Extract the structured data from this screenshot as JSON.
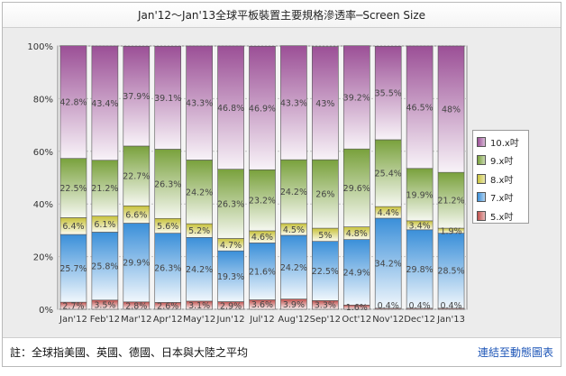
{
  "window": {
    "title": "Jan'12～Jan'13全球平板裝置主要規格滲透率─Screen Size"
  },
  "footer": {
    "note": "註：全球指美國、英國、德國、日本與大陸之平均",
    "link_label": "連結至動態圖表"
  },
  "chart_data": {
    "type": "bar",
    "stacked": true,
    "normalized": true,
    "title": "Jan'12～Jan'13全球平板裝置主要規格滲透率─Screen Size",
    "xlabel": "",
    "ylabel": "",
    "categories": [
      "Jan'12",
      "Feb'12",
      "Mar'12",
      "Apr'12",
      "May'12",
      "Jun'12",
      "Jul'12",
      "Aug'12",
      "Sep'12",
      "Oct'12",
      "Nov'12",
      "Dec'12",
      "Jan'13"
    ],
    "yticks": [
      "0%",
      "20%",
      "40%",
      "60%",
      "80%",
      "100%"
    ],
    "ylim": [
      0,
      100
    ],
    "grid": true,
    "legend_position": "right",
    "series": [
      {
        "name": "5.x吋",
        "color": "#c0504d",
        "values": [
          2.7,
          3.5,
          2.8,
          2.6,
          3.1,
          2.9,
          3.6,
          3.9,
          3.3,
          1.6,
          0.4,
          0.4,
          0.4
        ],
        "labels": [
          "2.7%",
          "3.5%",
          "2.8%",
          "2.6%",
          "3.1%",
          "2.9%",
          "3.6%",
          "3.9%",
          "3.3%",
          "1.6%",
          "0.4%",
          "0.4%",
          "0.4%"
        ]
      },
      {
        "name": "7.x吋",
        "color": "#3a8fd9",
        "values": [
          25.7,
          25.8,
          29.9,
          26.3,
          24.2,
          19.3,
          21.6,
          24.2,
          22.5,
          24.9,
          34.2,
          29.8,
          28.5
        ],
        "labels": [
          "25.7%",
          "25.8%",
          "29.9%",
          "26.3%",
          "24.2%",
          "19.3%",
          "21.6%",
          "24.2%",
          "22.5%",
          "24.9%",
          "34.2%",
          "29.8%",
          "28.5%"
        ]
      },
      {
        "name": "8.x吋",
        "color": "#c8c23a",
        "values": [
          6.4,
          6.1,
          6.6,
          5.6,
          5.2,
          4.7,
          4.6,
          4.5,
          5.0,
          4.8,
          4.4,
          3.4,
          1.9
        ],
        "labels": [
          "6.4%",
          "6.1%",
          "6.6%",
          "5.6%",
          "5.2%",
          "4.7%",
          "4.6%",
          "4.5%",
          "5%",
          "4.8%",
          "4.4%",
          "3.4%",
          "1.9%"
        ]
      },
      {
        "name": "9.x吋",
        "color": "#79a13c",
        "values": [
          22.5,
          21.2,
          22.7,
          26.3,
          24.2,
          26.3,
          23.2,
          24.2,
          26.0,
          29.6,
          25.4,
          19.9,
          21.2
        ],
        "labels": [
          "22.5%",
          "21.2%",
          "22.7%",
          "26.3%",
          "24.2%",
          "26.3%",
          "23.2%",
          "24.2%",
          "26%",
          "29.6%",
          "25.4%",
          "19.9%",
          "21.2%"
        ]
      },
      {
        "name": "10.x吋",
        "color": "#9b4f96",
        "values": [
          42.8,
          43.4,
          37.9,
          39.1,
          43.3,
          46.8,
          46.9,
          43.3,
          43.0,
          39.2,
          35.5,
          46.5,
          48.0
        ],
        "labels": [
          "42.8%",
          "43.4%",
          "37.9%",
          "39.1%",
          "43.3%",
          "46.8%",
          "46.9%",
          "43.3%",
          "43%",
          "39.2%",
          "35.5%",
          "46.5%",
          "48%"
        ]
      }
    ]
  }
}
